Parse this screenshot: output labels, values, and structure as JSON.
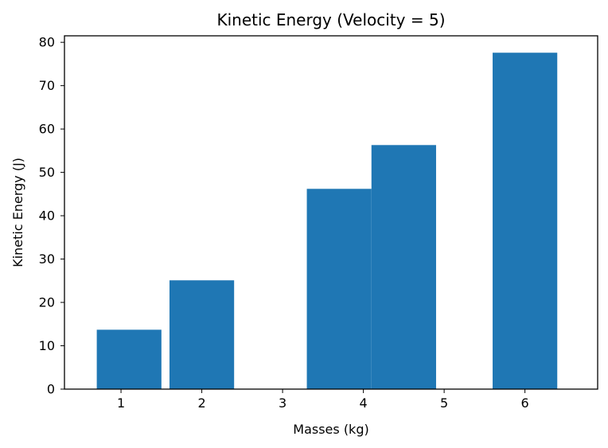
{
  "chart_data": {
    "type": "bar",
    "title": "Kinetic Energy (Velocity = 5)",
    "xlabel": "Masses (kg)",
    "ylabel": "Kinetic Energy (J)",
    "bar_color": "#1f77b4",
    "xlim": [
      0.3,
      6.9
    ],
    "ylim": [
      0,
      81.5
    ],
    "x_ticks": [
      1,
      2,
      3,
      4,
      5,
      6
    ],
    "y_ticks": [
      0,
      10,
      20,
      30,
      40,
      50,
      60,
      70,
      80
    ],
    "bars": [
      {
        "x": 1.1,
        "width": 0.8,
        "value": 13.7
      },
      {
        "x": 2.0,
        "width": 0.8,
        "value": 25.1
      },
      {
        "x": 3.7,
        "width": 0.8,
        "value": 46.2
      },
      {
        "x": 4.5,
        "width": 0.8,
        "value": 56.3
      },
      {
        "x": 6.0,
        "width": 0.8,
        "value": 77.6
      }
    ],
    "grid": false,
    "legend": "none"
  }
}
